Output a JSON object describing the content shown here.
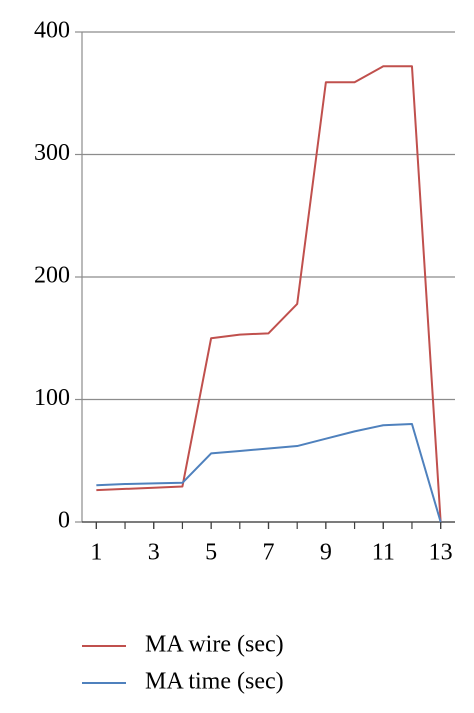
{
  "chart_data": {
    "type": "line",
    "x": [
      1,
      2,
      3,
      4,
      5,
      6,
      7,
      8,
      9,
      10,
      11,
      12,
      13
    ],
    "series": [
      {
        "name": "MA wire (sec)",
        "color": "#c0504d",
        "values": [
          26,
          27,
          28,
          29,
          150,
          153,
          154,
          178,
          359,
          359,
          372,
          372,
          0
        ]
      },
      {
        "name": "MA time (sec)",
        "color": "#4f81bd",
        "values": [
          30,
          31,
          31.5,
          32,
          56,
          58,
          60,
          62,
          68,
          74,
          79,
          80,
          0
        ]
      }
    ],
    "xlim": [
      0.5,
      13.5
    ],
    "xticks": [
      1,
      3,
      5,
      7,
      9,
      11,
      13
    ],
    "ylim": [
      0,
      400
    ],
    "yticks": [
      0,
      100,
      200,
      300,
      400
    ],
    "grid": true,
    "legend": "bottom"
  }
}
